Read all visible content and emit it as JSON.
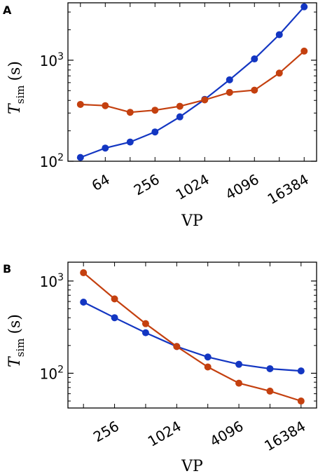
{
  "colors": {
    "series_1": "#1336c2",
    "series_2": "#c4400f"
  },
  "chart_data": [
    {
      "panel": "A",
      "type": "line",
      "xscale": "log2",
      "yscale": "log10",
      "xlabel": "VP",
      "ylabel_main": "T",
      "ylabel_sub": "sim",
      "ylabel_unit": "(s)",
      "xlim": [
        22.6,
        23170
      ],
      "ylim": [
        100,
        3700
      ],
      "xticks": [
        64,
        256,
        1024,
        4096,
        16384
      ],
      "xtick_labels": [
        "64",
        "256",
        "1024",
        "4096",
        "16384"
      ],
      "yticks": [
        100,
        1000
      ],
      "ytick_labels": [
        "10^2",
        "10^3"
      ],
      "x": [
        32,
        64,
        128,
        256,
        512,
        1024,
        2048,
        4096,
        8192,
        16384
      ],
      "series": [
        {
          "color_key": "series_1",
          "values": [
            109,
            135,
            155,
            195,
            275,
            410,
            640,
            1030,
            1790,
            3380
          ]
        },
        {
          "color_key": "series_2",
          "values": [
            365,
            355,
            305,
            320,
            350,
            405,
            480,
            505,
            745,
            1230
          ]
        }
      ]
    },
    {
      "panel": "B",
      "type": "line",
      "xscale": "log2",
      "yscale": "log10",
      "xlabel": "VP",
      "ylabel_main": "T",
      "ylabel_sub": "sim",
      "ylabel_unit": "(s)",
      "xlim": [
        90.5,
        23170
      ],
      "ylim": [
        42,
        1600
      ],
      "xticks": [
        256,
        1024,
        4096,
        16384
      ],
      "xtick_labels": [
        "256",
        "1024",
        "4096",
        "16384"
      ],
      "yticks": [
        100,
        1000
      ],
      "ytick_labels": [
        "10^2",
        "10^3"
      ],
      "x": [
        128,
        256,
        512,
        1024,
        2048,
        4096,
        8192,
        16384
      ],
      "series": [
        {
          "color_key": "series_1",
          "values": [
            590,
            400,
            275,
            195,
            150,
            125,
            112,
            106
          ]
        },
        {
          "color_key": "series_2",
          "values": [
            1230,
            640,
            345,
            195,
            117,
            78,
            64,
            50
          ]
        }
      ]
    }
  ]
}
